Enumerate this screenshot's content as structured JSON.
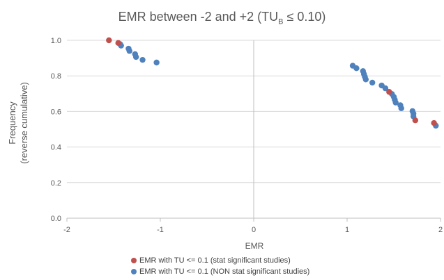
{
  "chart_data": {
    "type": "scatter",
    "title": {
      "prefix": "EMR between -2 and +2 (TU",
      "sub": "B",
      "suffix": " ≤ 0.10)"
    },
    "xlabel": "EMR",
    "ylabel_lines": [
      "Frequency",
      "(reverse cumulative)"
    ],
    "xlim": [
      -2,
      2
    ],
    "ylim": [
      0,
      1.0
    ],
    "xticks": [
      "-2",
      "-1",
      "0",
      "1",
      "2"
    ],
    "xtick_values": [
      -2,
      -1,
      0,
      1,
      2
    ],
    "yticks": [
      "0.0",
      "0.2",
      "0.4",
      "0.6",
      "0.8",
      "1.0"
    ],
    "ytick_values": [
      0,
      0.2,
      0.4,
      0.6,
      0.8,
      1.0
    ],
    "grid": "horizontal",
    "legend_position": "bottom",
    "series": [
      {
        "name": "EMR with TU <= 0.1 (stat significant studies)",
        "color": "#c0504d",
        "points": [
          [
            -1.55,
            1.0
          ],
          [
            -1.45,
            0.985
          ],
          [
            1.45,
            0.71
          ],
          [
            1.73,
            0.55
          ],
          [
            1.93,
            0.535
          ]
        ]
      },
      {
        "name": "EMR with TU <= 0.1 (NON stat significant studies)",
        "color": "#4f81bd",
        "points": [
          [
            -1.43,
            0.978
          ],
          [
            -1.42,
            0.97
          ],
          [
            -1.34,
            0.953
          ],
          [
            -1.33,
            0.94
          ],
          [
            -1.27,
            0.922
          ],
          [
            -1.26,
            0.906
          ],
          [
            -1.19,
            0.89
          ],
          [
            -1.04,
            0.875
          ],
          [
            1.06,
            0.857
          ],
          [
            1.1,
            0.843
          ],
          [
            1.17,
            0.827
          ],
          [
            1.18,
            0.81
          ],
          [
            1.19,
            0.795
          ],
          [
            1.2,
            0.78
          ],
          [
            1.27,
            0.762
          ],
          [
            1.37,
            0.746
          ],
          [
            1.41,
            0.73
          ],
          [
            1.48,
            0.698
          ],
          [
            1.5,
            0.682
          ],
          [
            1.51,
            0.666
          ],
          [
            1.52,
            0.65
          ],
          [
            1.57,
            0.635
          ],
          [
            1.58,
            0.618
          ],
          [
            1.7,
            0.602
          ],
          [
            1.71,
            0.588
          ],
          [
            1.71,
            0.572
          ],
          [
            1.95,
            0.52
          ]
        ]
      }
    ]
  }
}
